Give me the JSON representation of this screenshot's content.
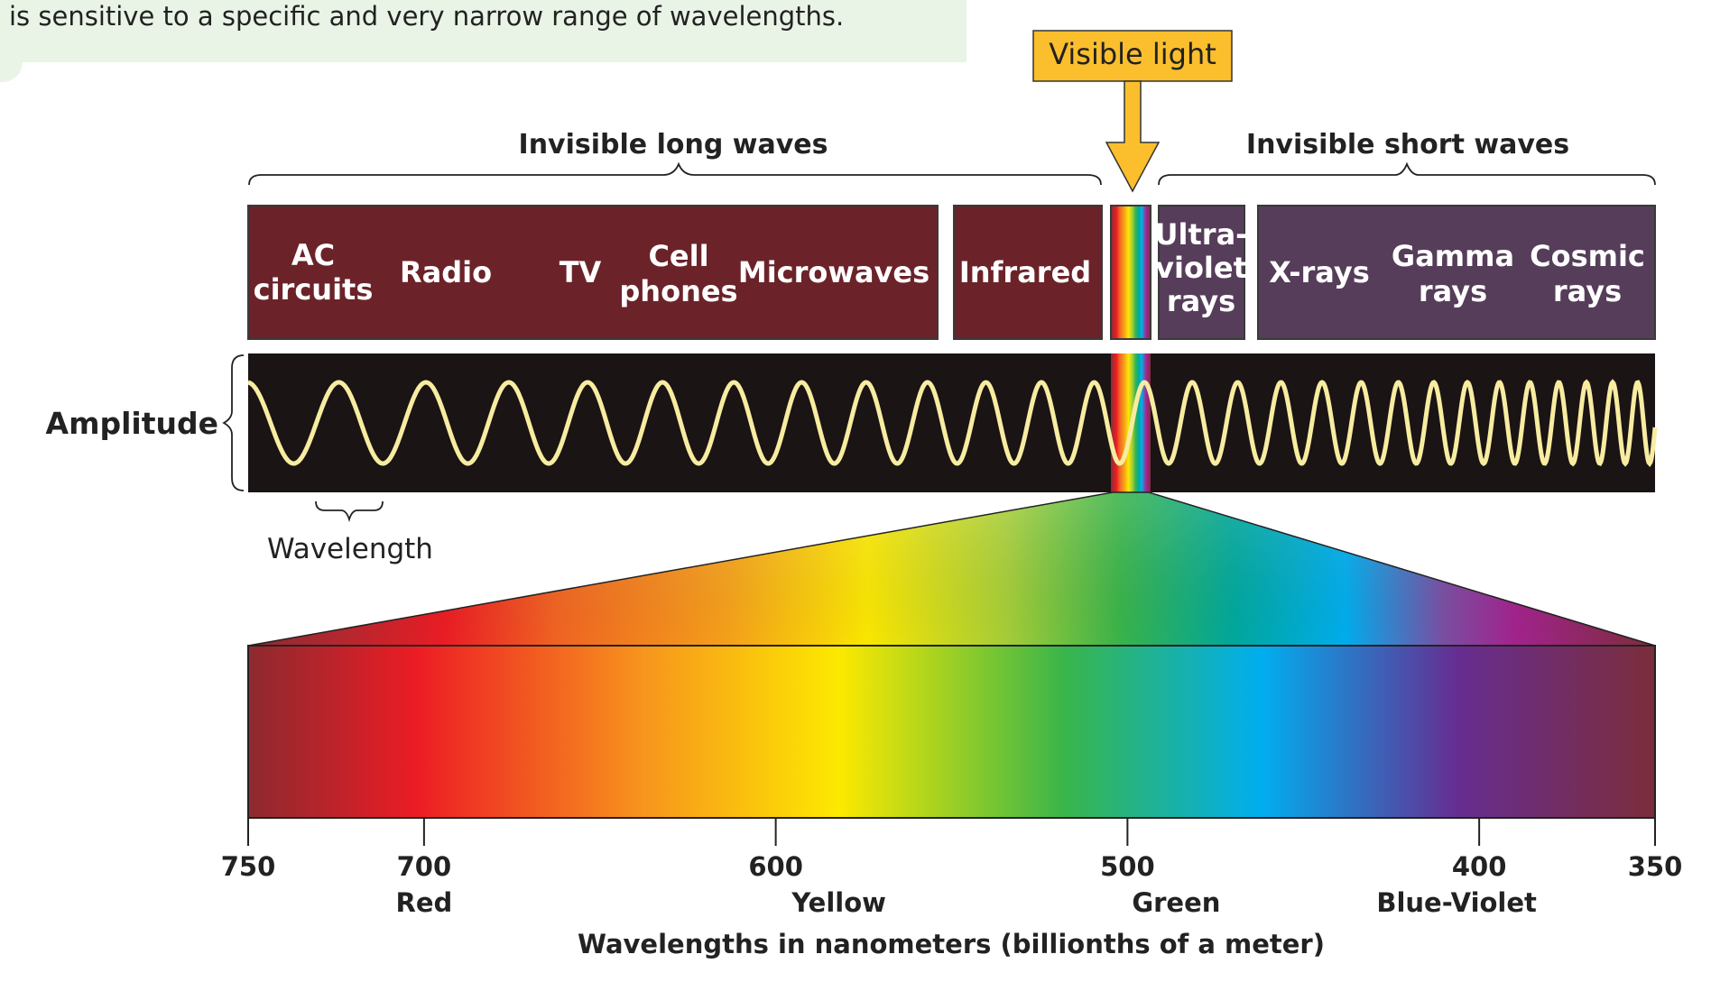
{
  "caption": "is sensitive to a specific and very narrow range of wavelengths.",
  "visible_light_label": "Visible light",
  "long_waves_label": "Invisible long waves",
  "short_waves_label": "Invisible short waves",
  "bands": {
    "ac": [
      "AC",
      "circuits"
    ],
    "radio": "Radio",
    "tv": "TV",
    "cell": [
      "Cell",
      "phones"
    ],
    "microwaves": "Microwaves",
    "infrared": "Infrared",
    "ultraviolet": [
      "Ultra-",
      "violet",
      "rays"
    ],
    "xrays": "X-rays",
    "gamma": [
      "Gamma",
      "rays"
    ],
    "cosmic": [
      "Cosmic",
      "rays"
    ]
  },
  "amplitude_label": "Amplitude",
  "wavelength_label": "Wavelength",
  "axis": {
    "ticks": [
      {
        "value": 750,
        "label": "750",
        "color": ""
      },
      {
        "value": 700,
        "label": "700",
        "color": "Red"
      },
      {
        "value": 600,
        "label": "600",
        "color": "Yellow"
      },
      {
        "value": 500,
        "label": "500",
        "color": "Green"
      },
      {
        "value": 400,
        "label": "400",
        "color": "Blue-Violet"
      },
      {
        "value": 350,
        "label": "350",
        "color": ""
      }
    ],
    "title": "Wavelengths in nanometers (billionths of a meter)",
    "range": [
      750,
      350
    ]
  },
  "colors": {
    "long_box": "#6b2329",
    "short_box": "#563d5a",
    "wave_band": "#1a1414",
    "wave_line": "#f7eca0",
    "visible_callout": "#fbbf2e",
    "caption_bg": "#e9f4e6"
  }
}
